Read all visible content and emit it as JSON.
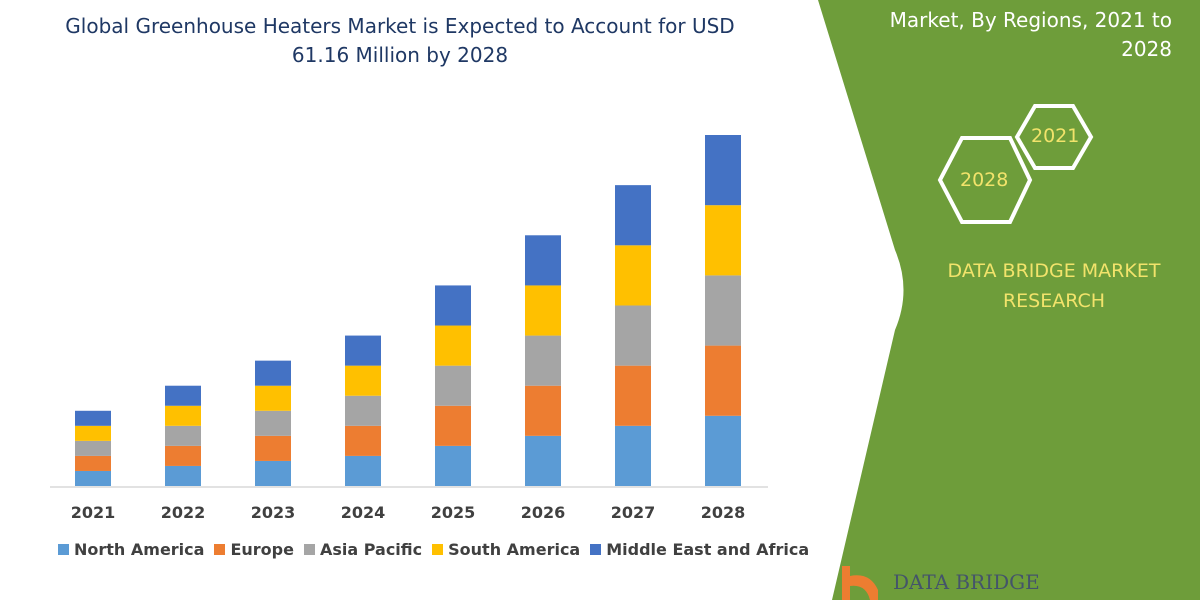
{
  "chart_data": {
    "type": "bar",
    "stacked": true,
    "title": "Global Greenhouse Heaters Market is Expected to Account for USD 61.16 Million by 2028",
    "xlabel": "",
    "ylabel": "",
    "categories": [
      "2021",
      "2022",
      "2023",
      "2024",
      "2025",
      "2026",
      "2027",
      "2028"
    ],
    "series": [
      {
        "name": "North America",
        "color": "#5b9bd5",
        "values": [
          15,
          20,
          25,
          30,
          40,
          50,
          60,
          70
        ]
      },
      {
        "name": "Europe",
        "color": "#ed7d31",
        "values": [
          15,
          20,
          25,
          30,
          40,
          50,
          60,
          70
        ]
      },
      {
        "name": "Asia Pacific",
        "color": "#a5a5a5",
        "values": [
          15,
          20,
          25,
          30,
          40,
          50,
          60,
          70
        ]
      },
      {
        "name": "South America",
        "color": "#ffc000",
        "values": [
          15,
          20,
          25,
          30,
          40,
          50,
          60,
          70
        ]
      },
      {
        "name": "Middle East and Africa",
        "color": "#4472c4",
        "values": [
          15,
          20,
          25,
          30,
          40,
          50,
          60,
          70
        ]
      }
    ],
    "ylim": [
      0,
      350
    ],
    "grid": false,
    "y_axis_shown": false,
    "legend": "bottom"
  },
  "side_panel": {
    "title": "Market, By Regions, 2021 to 2028",
    "hex_start": "2021",
    "hex_end": "2028",
    "brand": "DATA BRIDGE MARKET RESEARCH",
    "logo_text": "DATA BRIDGE",
    "color": "#6e9d3a"
  }
}
